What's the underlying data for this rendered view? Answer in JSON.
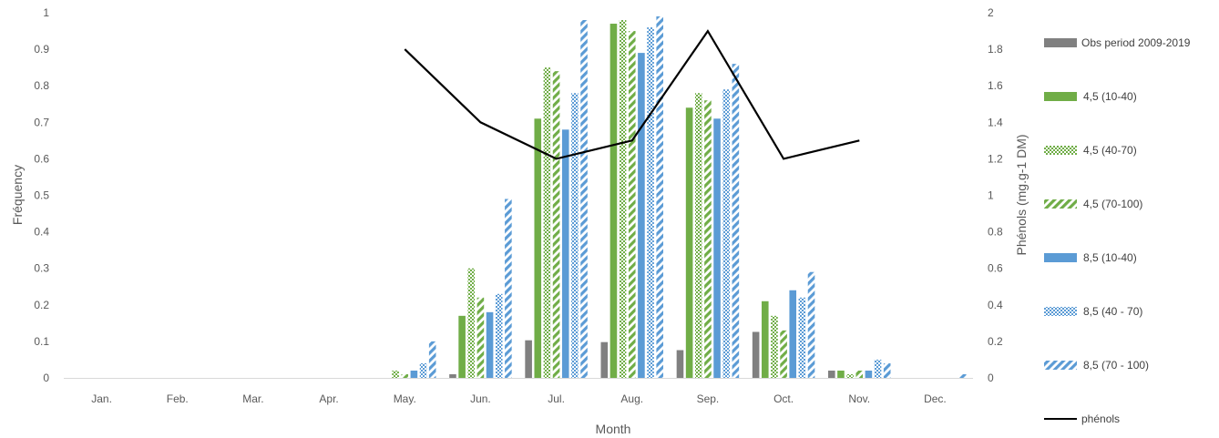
{
  "chart_data": {
    "type": "bar",
    "title": "",
    "xlabel": "Month",
    "ylabel": "Fréquency",
    "y2label": "Phénols (mg.g-1 DM)",
    "ylim": [
      0,
      1
    ],
    "y2lim": [
      0,
      2
    ],
    "yticks": [
      "0",
      "0.1",
      "0.2",
      "0.3",
      "0.4",
      "0.5",
      "0.6",
      "0.7",
      "0.8",
      "0.9",
      "1"
    ],
    "y2ticks": [
      "0",
      "0.2",
      "0.4",
      "0.6",
      "0.8",
      "1",
      "1.2",
      "1.4",
      "1.6",
      "1.8",
      "2"
    ],
    "categories": [
      "Jan.",
      "Feb.",
      "Mar.",
      "Apr.",
      "May.",
      "Jun.",
      "Jul.",
      "Aug.",
      "Sep.",
      "Oct.",
      "Nov.",
      "Dec."
    ],
    "grid": false,
    "legend_position": "right",
    "series": [
      {
        "name": "Obs period 2009-2019",
        "color": "#808080",
        "pattern": "solid",
        "values": [
          0,
          0,
          0,
          0,
          0,
          0.01,
          0.103,
          0.098,
          0.076,
          0.126,
          0.02,
          0
        ]
      },
      {
        "name": "4,5 (10-40)",
        "color": "#70ad47",
        "pattern": "solid",
        "values": [
          0,
          0,
          0,
          0,
          0,
          0.17,
          0.71,
          0.97,
          0.74,
          0.21,
          0.02,
          0
        ]
      },
      {
        "name": "4,5 (40-70)",
        "color": "#70ad47",
        "pattern": "checker",
        "values": [
          0,
          0,
          0,
          0,
          0.02,
          0.3,
          0.85,
          0.98,
          0.78,
          0.17,
          0.01,
          0
        ]
      },
      {
        "name": "4,5 (70-100)",
        "color": "#70ad47",
        "pattern": "diagonal",
        "values": [
          0,
          0,
          0,
          0,
          0.01,
          0.22,
          0.84,
          0.95,
          0.76,
          0.13,
          0.02,
          0
        ]
      },
      {
        "name": "8,5 (10-40)",
        "color": "#5b9bd5",
        "pattern": "solid",
        "values": [
          0,
          0,
          0,
          0,
          0.02,
          0.18,
          0.68,
          0.89,
          0.71,
          0.24,
          0.02,
          0
        ]
      },
      {
        "name": "8,5 (40 - 70)",
        "color": "#5b9bd5",
        "pattern": "checker",
        "values": [
          0,
          0,
          0,
          0,
          0.04,
          0.23,
          0.78,
          0.96,
          0.79,
          0.22,
          0.05,
          0
        ]
      },
      {
        "name": "8,5 (70 - 100)",
        "color": "#5b9bd5",
        "pattern": "diagonal",
        "values": [
          0,
          0,
          0,
          0,
          0.1,
          0.49,
          0.98,
          0.99,
          0.86,
          0.29,
          0.04,
          0.01
        ]
      }
    ],
    "line_series": {
      "name": "phénols",
      "color": "#000000",
      "axis": "right",
      "points": [
        {
          "category": "May.",
          "value": 1.8
        },
        {
          "category": "Jun.",
          "value": 1.4
        },
        {
          "category": "Jul.",
          "value": 1.2
        },
        {
          "category": "Aug.",
          "value": 1.3
        },
        {
          "category": "Sep.",
          "value": 1.9
        },
        {
          "category": "Oct.",
          "value": 1.2
        },
        {
          "category": "Nov.",
          "value": 1.3
        }
      ]
    }
  }
}
